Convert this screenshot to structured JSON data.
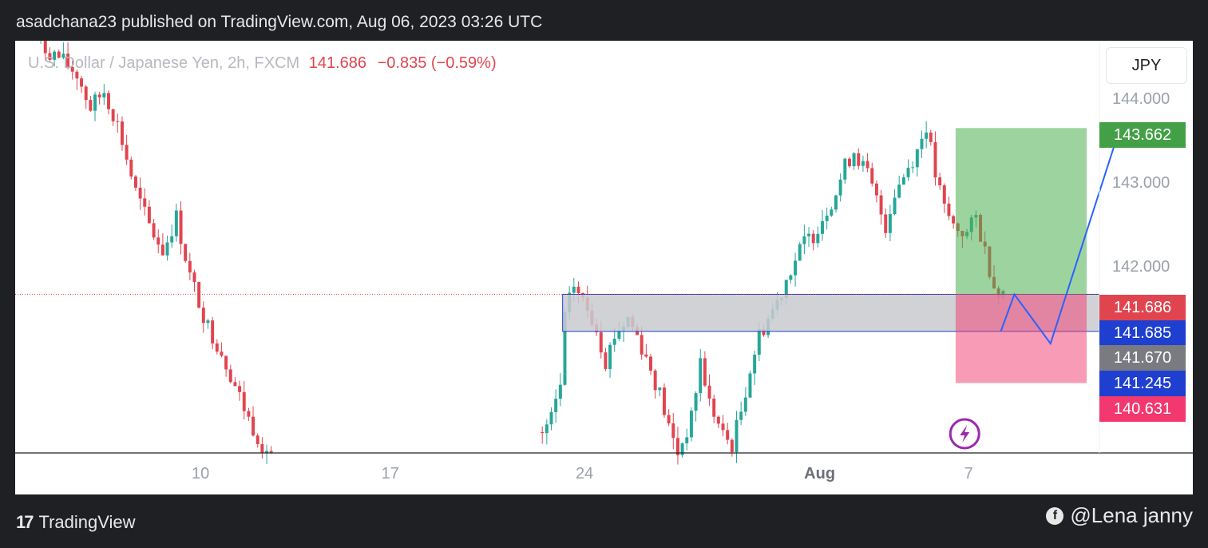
{
  "header": {
    "publisher_line": "asadchana23 published on TradingView.com, Aug 06, 2023 03:26 UTC"
  },
  "legend": {
    "symbol": "U.S. Dollar / Japanese Yen, 2h, FXCM",
    "price": "141.686",
    "change": "−0.835 (−0.59%)"
  },
  "currency_button": "JPY",
  "footer": {
    "brand": "TradingView",
    "credit": "@Lena janny"
  },
  "colors": {
    "up": "#26a69a",
    "down": "#e0454f",
    "target": "#4caf50",
    "stop": "#f2386e",
    "entry": "#1e3fd0",
    "zone": "#c9cacf",
    "projection": "#2962ff",
    "lightning": "#9c27b0"
  },
  "chart_data": {
    "type": "candlestick",
    "symbol": "USD/JPY",
    "timeframe": "2h",
    "ylim": [
      139.8,
      144.7
    ],
    "y_ticks": [
      "144.000",
      "143.000",
      "142.000"
    ],
    "x_ticks": [
      "10",
      "17",
      "24",
      "Aug",
      "7"
    ],
    "last_price": 141.686,
    "price_tags": [
      {
        "label": "143.662",
        "value": 143.662,
        "color": "#43a047"
      },
      {
        "label": "141.686",
        "value": 141.686,
        "color": "#e0454f"
      },
      {
        "label": "141.685",
        "value": 141.685,
        "color": "#1e3fd0"
      },
      {
        "label": "141.670",
        "value": 141.67,
        "color": "#7a7b80"
      },
      {
        "label": "141.245",
        "value": 141.245,
        "color": "#1e3fd0"
      },
      {
        "label": "140.631",
        "value": 140.631,
        "color": "#f2386e"
      }
    ],
    "zone": {
      "top": 141.685,
      "bottom": 141.245
    },
    "position": {
      "entry_top": 141.685,
      "entry_bottom": 141.245,
      "target": 143.662,
      "stop": 140.631
    },
    "price_path": [
      [
        3,
        144.8
      ],
      [
        6,
        144.6
      ],
      [
        9,
        144.5
      ],
      [
        13,
        144.3
      ],
      [
        16,
        143.9
      ],
      [
        19,
        144.1
      ],
      [
        22,
        143.7
      ],
      [
        26,
        142.9
      ],
      [
        29,
        142.5
      ],
      [
        32,
        142.2
      ],
      [
        35,
        142.6
      ],
      [
        38,
        141.9
      ],
      [
        42,
        141.3
      ],
      [
        45,
        141.0
      ],
      [
        48,
        140.6
      ],
      [
        51,
        140.2
      ],
      [
        54,
        139.9
      ],
      [
        56,
        139.8
      ],
      [
        115,
        139.9
      ],
      [
        118,
        140.2
      ],
      [
        120,
        140.6
      ],
      [
        121,
        141.4
      ],
      [
        123,
        141.8
      ],
      [
        126,
        141.5
      ],
      [
        128,
        141.3
      ],
      [
        130,
        140.9
      ],
      [
        132,
        141.2
      ],
      [
        135,
        141.4
      ],
      [
        137,
        141.2
      ],
      [
        140,
        140.8
      ],
      [
        142,
        140.5
      ],
      [
        144,
        140.1
      ],
      [
        146,
        139.8
      ],
      [
        149,
        140.2
      ],
      [
        151,
        140.9
      ],
      [
        153,
        140.4
      ],
      [
        156,
        140.0
      ],
      [
        158,
        139.9
      ],
      [
        160,
        140.3
      ],
      [
        162,
        140.8
      ],
      [
        164,
        141.2
      ],
      [
        166,
        141.4
      ],
      [
        168,
        141.6
      ],
      [
        171,
        142.0
      ],
      [
        174,
        142.3
      ],
      [
        176,
        142.4
      ],
      [
        179,
        142.7
      ],
      [
        181,
        142.9
      ],
      [
        183,
        143.2
      ],
      [
        185,
        143.4
      ],
      [
        188,
        143.1
      ],
      [
        190,
        142.8
      ],
      [
        192,
        142.5
      ],
      [
        194,
        142.9
      ],
      [
        197,
        143.2
      ],
      [
        199,
        143.4
      ],
      [
        201,
        143.7
      ],
      [
        203,
        143.1
      ],
      [
        205,
        142.7
      ],
      [
        207,
        142.5
      ],
      [
        210,
        142.4
      ],
      [
        212,
        142.6
      ],
      [
        214,
        142.2
      ],
      [
        216,
        141.8
      ],
      [
        218,
        141.7
      ]
    ],
    "projection": [
      [
        218,
        141.245
      ],
      [
        221,
        141.685
      ],
      [
        229,
        141.1
      ],
      [
        244,
        143.6
      ]
    ]
  }
}
